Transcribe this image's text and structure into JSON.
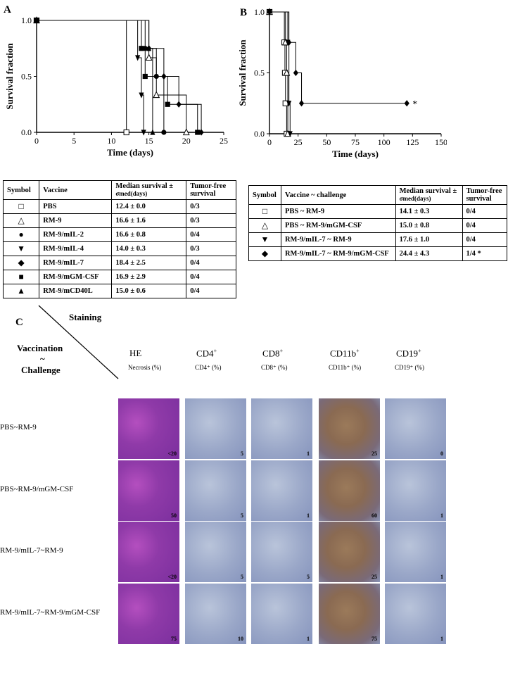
{
  "panels": {
    "a": "A",
    "b": "B",
    "c": "C"
  },
  "chart_data": [
    {
      "type": "line",
      "panel": "A",
      "xlabel": "Time (days)",
      "ylabel": "Survival fraction",
      "xlim": [
        0,
        25
      ],
      "ylim": [
        0,
        1
      ],
      "x_ticks": [
        "0",
        "5",
        "10",
        "15",
        "20",
        "25"
      ],
      "y_ticks": [
        "0.0",
        "0.5",
        "1.0"
      ],
      "series": [
        {
          "name": "PBS",
          "symbol": "open-square",
          "steps": [
            [
              0,
              1
            ],
            [
              12,
              1
            ],
            [
              12,
              0
            ]
          ]
        },
        {
          "name": "RM-9",
          "symbol": "open-triangle",
          "steps": [
            [
              0,
              1
            ],
            [
              15,
              1
            ],
            [
              15,
              0.667
            ],
            [
              16,
              0.667
            ],
            [
              16,
              0.333
            ],
            [
              20,
              0.333
            ],
            [
              20,
              0
            ]
          ]
        },
        {
          "name": "RM-9/mIL-2",
          "symbol": "filled-circle",
          "steps": [
            [
              0,
              1
            ],
            [
              14.5,
              1
            ],
            [
              14.5,
              0.75
            ],
            [
              16,
              0.75
            ],
            [
              16,
              0.5
            ],
            [
              17,
              0.5
            ],
            [
              17,
              0
            ]
          ]
        },
        {
          "name": "RM-9/mIL-4",
          "symbol": "filled-down-triangle",
          "steps": [
            [
              0,
              1
            ],
            [
              13.5,
              1
            ],
            [
              13.5,
              0.667
            ],
            [
              14,
              0.667
            ],
            [
              14,
              0.333
            ],
            [
              14.3,
              0.333
            ],
            [
              14.3,
              0
            ]
          ]
        },
        {
          "name": "RM-9/mIL-7",
          "symbol": "filled-diamond",
          "steps": [
            [
              0,
              1
            ],
            [
              15,
              1
            ],
            [
              15,
              0.75
            ],
            [
              17,
              0.75
            ],
            [
              17,
              0.5
            ],
            [
              19,
              0.5
            ],
            [
              19,
              0.25
            ],
            [
              22,
              0.25
            ],
            [
              22,
              0
            ]
          ]
        },
        {
          "name": "RM-9/mGM-CSF",
          "symbol": "filled-square",
          "steps": [
            [
              0,
              1
            ],
            [
              14,
              1
            ],
            [
              14,
              0.75
            ],
            [
              14.5,
              0.75
            ],
            [
              14.5,
              0.5
            ],
            [
              17.5,
              0.5
            ],
            [
              17.5,
              0.25
            ],
            [
              21.5,
              0.25
            ],
            [
              21.5,
              0
            ]
          ]
        },
        {
          "name": "RM-9/mCD40L",
          "symbol": "filled-triangle",
          "steps": [
            [
              0,
              1
            ],
            [
              15,
              1
            ],
            [
              15,
              0.75
            ],
            [
              15.5,
              0.75
            ],
            [
              15.5,
              0
            ]
          ]
        }
      ]
    },
    {
      "type": "line",
      "panel": "B",
      "xlabel": "Time (days)",
      "ylabel": "Survival fraction",
      "xlim": [
        0,
        150
      ],
      "ylim": [
        0,
        1
      ],
      "x_ticks": [
        "0",
        "25",
        "50",
        "75",
        "100",
        "125",
        "150"
      ],
      "y_ticks": [
        "0.0",
        "0.5",
        "1.0"
      ],
      "annotation": "*",
      "series": [
        {
          "name": "PBS ~ RM-9",
          "symbol": "open-square",
          "steps": [
            [
              0,
              1
            ],
            [
              13,
              1
            ],
            [
              13,
              0.75
            ],
            [
              13.5,
              0.75
            ],
            [
              13.5,
              0.5
            ],
            [
              14,
              0.5
            ],
            [
              14,
              0.25
            ],
            [
              15,
              0.25
            ],
            [
              15,
              0
            ]
          ]
        },
        {
          "name": "PBS ~ RM-9/mGM-CSF",
          "symbol": "open-triangle",
          "steps": [
            [
              0,
              1
            ],
            [
              14,
              1
            ],
            [
              14,
              0.75
            ],
            [
              15,
              0.75
            ],
            [
              15,
              0.5
            ],
            [
              16,
              0.5
            ],
            [
              16,
              0
            ]
          ]
        },
        {
          "name": "RM-9/mIL-7 ~ RM-9",
          "symbol": "filled-down-triangle",
          "steps": [
            [
              0,
              1
            ],
            [
              16,
              1
            ],
            [
              16,
              0.75
            ],
            [
              17,
              0.75
            ],
            [
              17,
              0.25
            ],
            [
              18,
              0.25
            ],
            [
              18,
              0
            ]
          ]
        },
        {
          "name": "RM-9/mIL-7 ~ RM-9/mGM-CSF",
          "symbol": "filled-diamond",
          "steps": [
            [
              0,
              1
            ],
            [
              17,
              1
            ],
            [
              17,
              0.75
            ],
            [
              23,
              0.75
            ],
            [
              23,
              0.5
            ],
            [
              28,
              0.5
            ],
            [
              28,
              0.25
            ],
            [
              120,
              0.25
            ]
          ]
        }
      ]
    }
  ],
  "table_a": {
    "headers": [
      "Symbol",
      "Vaccine",
      "Median survival ±",
      "σmed(days)",
      "Tumor-free survival"
    ],
    "header_median_1": "Median survival ±",
    "header_median_2": "σmed(days)",
    "header_tf_1": "Tumor-free",
    "header_tf_2": "survival",
    "rows": [
      {
        "symbol": "□",
        "vaccine": "PBS",
        "median": "12.4 ± 0.0",
        "tf": "0/3"
      },
      {
        "symbol": "△",
        "vaccine": "RM-9",
        "median": "16.6 ± 1.6",
        "tf": "0/3"
      },
      {
        "symbol": "●",
        "vaccine": "RM-9/mIL-2",
        "median": "16.6 ± 0.8",
        "tf": "0/4"
      },
      {
        "symbol": "▼",
        "vaccine": "RM-9/mIL-4",
        "median": "14.0 ± 0.3",
        "tf": "0/3"
      },
      {
        "symbol": "◆",
        "vaccine": "RM-9/mIL-7",
        "median": "18.4 ± 2.5",
        "tf": "0/4"
      },
      {
        "symbol": "■",
        "vaccine": "RM-9/mGM-CSF",
        "median": "16.9 ± 2.9",
        "tf": "0/4"
      },
      {
        "symbol": "▲",
        "vaccine": "RM-9/mCD40L",
        "median": "15.0 ± 0.6",
        "tf": "0/4"
      }
    ]
  },
  "table_b": {
    "header_symbol": "Symbol",
    "header_vaccine": "Vaccine ~ challenge",
    "header_median_1": "Median survival ±",
    "header_median_2": "σmed(days)",
    "header_tf_1": "Tumor-free",
    "header_tf_2": "survival",
    "rows": [
      {
        "symbol": "□",
        "vaccine": "PBS ~ RM-9",
        "median": "14.1 ± 0.3",
        "tf": "0/4"
      },
      {
        "symbol": "△",
        "vaccine": "PBS ~ RM-9/mGM-CSF",
        "median": "15.0 ± 0.8",
        "tf": "0/4"
      },
      {
        "symbol": "▼",
        "vaccine": "RM-9/mIL-7 ~ RM-9",
        "median": "17.6 ± 1.0",
        "tf": "0/4"
      },
      {
        "symbol": "◆",
        "vaccine": "RM-9/mIL-7 ~ RM-9/mGM-CSF",
        "median": "24.4 ± 4.3",
        "tf": "1/4 *"
      }
    ]
  },
  "panel_c": {
    "staining_label": "Staining",
    "vaccination_label": "Vaccination",
    "tilde": "~",
    "challenge_label": "Challenge",
    "columns": [
      {
        "head": "HE",
        "sub": "Necrosis (%)"
      },
      {
        "head": "CD4",
        "sup": "+",
        "sub": "CD4⁺ (%)"
      },
      {
        "head": "CD8",
        "sup": "+",
        "sub": "CD8⁺ (%)"
      },
      {
        "head": "CD11b",
        "sup": "+",
        "sub": "CD11b⁺ (%)"
      },
      {
        "head": "CD19",
        "sup": "+",
        "sub": "CD19⁺ (%)"
      }
    ],
    "rows": [
      {
        "label": "PBS~RM-9",
        "values": [
          "<20",
          "5",
          "1",
          "25",
          "0"
        ]
      },
      {
        "label": "PBS~RM-9/mGM-CSF",
        "values": [
          "50",
          "5",
          "1",
          "60",
          "1"
        ]
      },
      {
        "label": "RM-9/mIL-7~RM-9",
        "values": [
          "<20",
          "5",
          "5",
          "25",
          "1"
        ]
      },
      {
        "label": "RM-9/mIL-7~RM-9/mGM-CSF",
        "values": [
          "75",
          "10",
          "1",
          "75",
          "1"
        ]
      }
    ]
  }
}
